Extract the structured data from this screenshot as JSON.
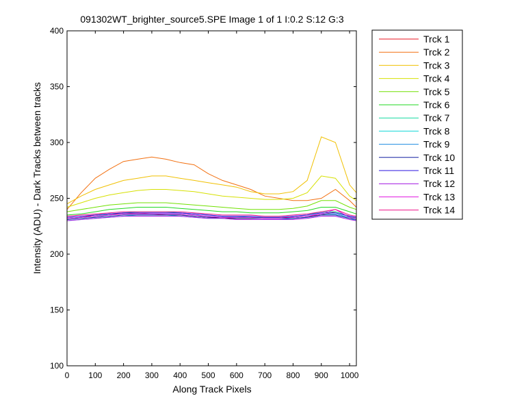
{
  "chart_data": {
    "type": "line",
    "title": "091302WT_brighter_source5.SPE  Image 1 of 1  I:0.2  S:12  G:3",
    "xlabel": "Along Track Pixels",
    "ylabel": "Intensity (ADU) - Dark Tracks between tracks",
    "xlim": [
      0,
      1024
    ],
    "ylim": [
      100,
      400
    ],
    "xticks": [
      0,
      100,
      200,
      300,
      400,
      500,
      600,
      700,
      800,
      900,
      1000
    ],
    "yticks": [
      100,
      150,
      200,
      250,
      300,
      350,
      400
    ],
    "grid": false,
    "legend_position": "outside-right",
    "x": [
      0,
      50,
      100,
      150,
      200,
      250,
      300,
      350,
      400,
      450,
      500,
      550,
      600,
      650,
      700,
      750,
      800,
      850,
      900,
      950,
      1000,
      1024
    ],
    "series": [
      {
        "name": "Trck 1",
        "color": "#e8131f",
        "values": [
          232,
          233,
          235,
          236,
          236,
          237,
          236,
          235,
          235,
          234,
          233,
          232,
          232,
          232,
          233,
          233,
          233,
          234,
          235,
          238,
          234,
          232
        ]
      },
      {
        "name": "Trck 2",
        "color": "#f26f0f",
        "values": [
          240,
          255,
          268,
          276,
          283,
          285,
          287,
          285,
          282,
          280,
          272,
          266,
          262,
          258,
          252,
          250,
          248,
          248,
          250,
          258,
          248,
          242
        ]
      },
      {
        "name": "Trck 3",
        "color": "#f0c000",
        "values": [
          245,
          252,
          258,
          262,
          266,
          268,
          270,
          270,
          268,
          266,
          264,
          262,
          260,
          256,
          254,
          254,
          256,
          266,
          305,
          300,
          262,
          255
        ]
      },
      {
        "name": "Trck 4",
        "color": "#d6e000",
        "values": [
          242,
          246,
          250,
          253,
          255,
          257,
          258,
          258,
          257,
          256,
          254,
          252,
          251,
          250,
          249,
          249,
          250,
          255,
          270,
          268,
          252,
          248
        ]
      },
      {
        "name": "Trck 5",
        "color": "#70e000",
        "values": [
          238,
          240,
          242,
          244,
          245,
          246,
          246,
          246,
          245,
          244,
          243,
          242,
          241,
          240,
          240,
          240,
          241,
          243,
          248,
          248,
          242,
          240
        ]
      },
      {
        "name": "Trck 6",
        "color": "#1fd81f",
        "values": [
          235,
          236,
          238,
          240,
          241,
          242,
          242,
          242,
          241,
          240,
          239,
          238,
          238,
          237,
          237,
          237,
          238,
          239,
          242,
          242,
          238,
          236
        ]
      },
      {
        "name": "Trck 7",
        "color": "#10d8a0",
        "values": [
          232,
          233,
          234,
          236,
          237,
          238,
          238,
          238,
          237,
          236,
          235,
          234,
          234,
          233,
          233,
          233,
          234,
          235,
          238,
          238,
          234,
          232
        ]
      },
      {
        "name": "Trck 8",
        "color": "#10d8d8",
        "values": [
          230,
          231,
          232,
          233,
          234,
          235,
          235,
          235,
          234,
          233,
          232,
          232,
          231,
          231,
          231,
          231,
          232,
          233,
          235,
          235,
          232,
          230
        ]
      },
      {
        "name": "Trck 9",
        "color": "#1b8ce0",
        "values": [
          232,
          233,
          234,
          235,
          236,
          236,
          236,
          236,
          236,
          235,
          234,
          233,
          233,
          233,
          232,
          232,
          233,
          234,
          236,
          236,
          233,
          232
        ]
      },
      {
        "name": "Trck 10",
        "color": "#101ea0",
        "values": [
          231,
          232,
          233,
          234,
          235,
          235,
          235,
          235,
          235,
          234,
          233,
          233,
          232,
          232,
          232,
          232,
          232,
          233,
          235,
          235,
          232,
          231
        ]
      },
      {
        "name": "Trck 11",
        "color": "#2a10e0",
        "values": [
          233,
          234,
          235,
          236,
          237,
          237,
          237,
          237,
          237,
          236,
          235,
          234,
          234,
          234,
          233,
          233,
          234,
          235,
          237,
          237,
          234,
          233
        ]
      },
      {
        "name": "Trck 12",
        "color": "#a010e0",
        "values": [
          230,
          231,
          232,
          233,
          234,
          234,
          234,
          234,
          234,
          233,
          232,
          232,
          231,
          231,
          231,
          231,
          231,
          232,
          234,
          234,
          231,
          230
        ]
      },
      {
        "name": "Trck 13",
        "color": "#e010e0",
        "values": [
          232,
          233,
          234,
          235,
          236,
          236,
          236,
          236,
          236,
          235,
          234,
          233,
          233,
          233,
          232,
          232,
          233,
          234,
          236,
          240,
          233,
          232
        ]
      },
      {
        "name": "Trck 14",
        "color": "#f0108a",
        "values": [
          234,
          235,
          236,
          237,
          238,
          238,
          238,
          238,
          238,
          237,
          236,
          235,
          235,
          235,
          234,
          234,
          235,
          236,
          238,
          240,
          235,
          234
        ]
      }
    ]
  }
}
